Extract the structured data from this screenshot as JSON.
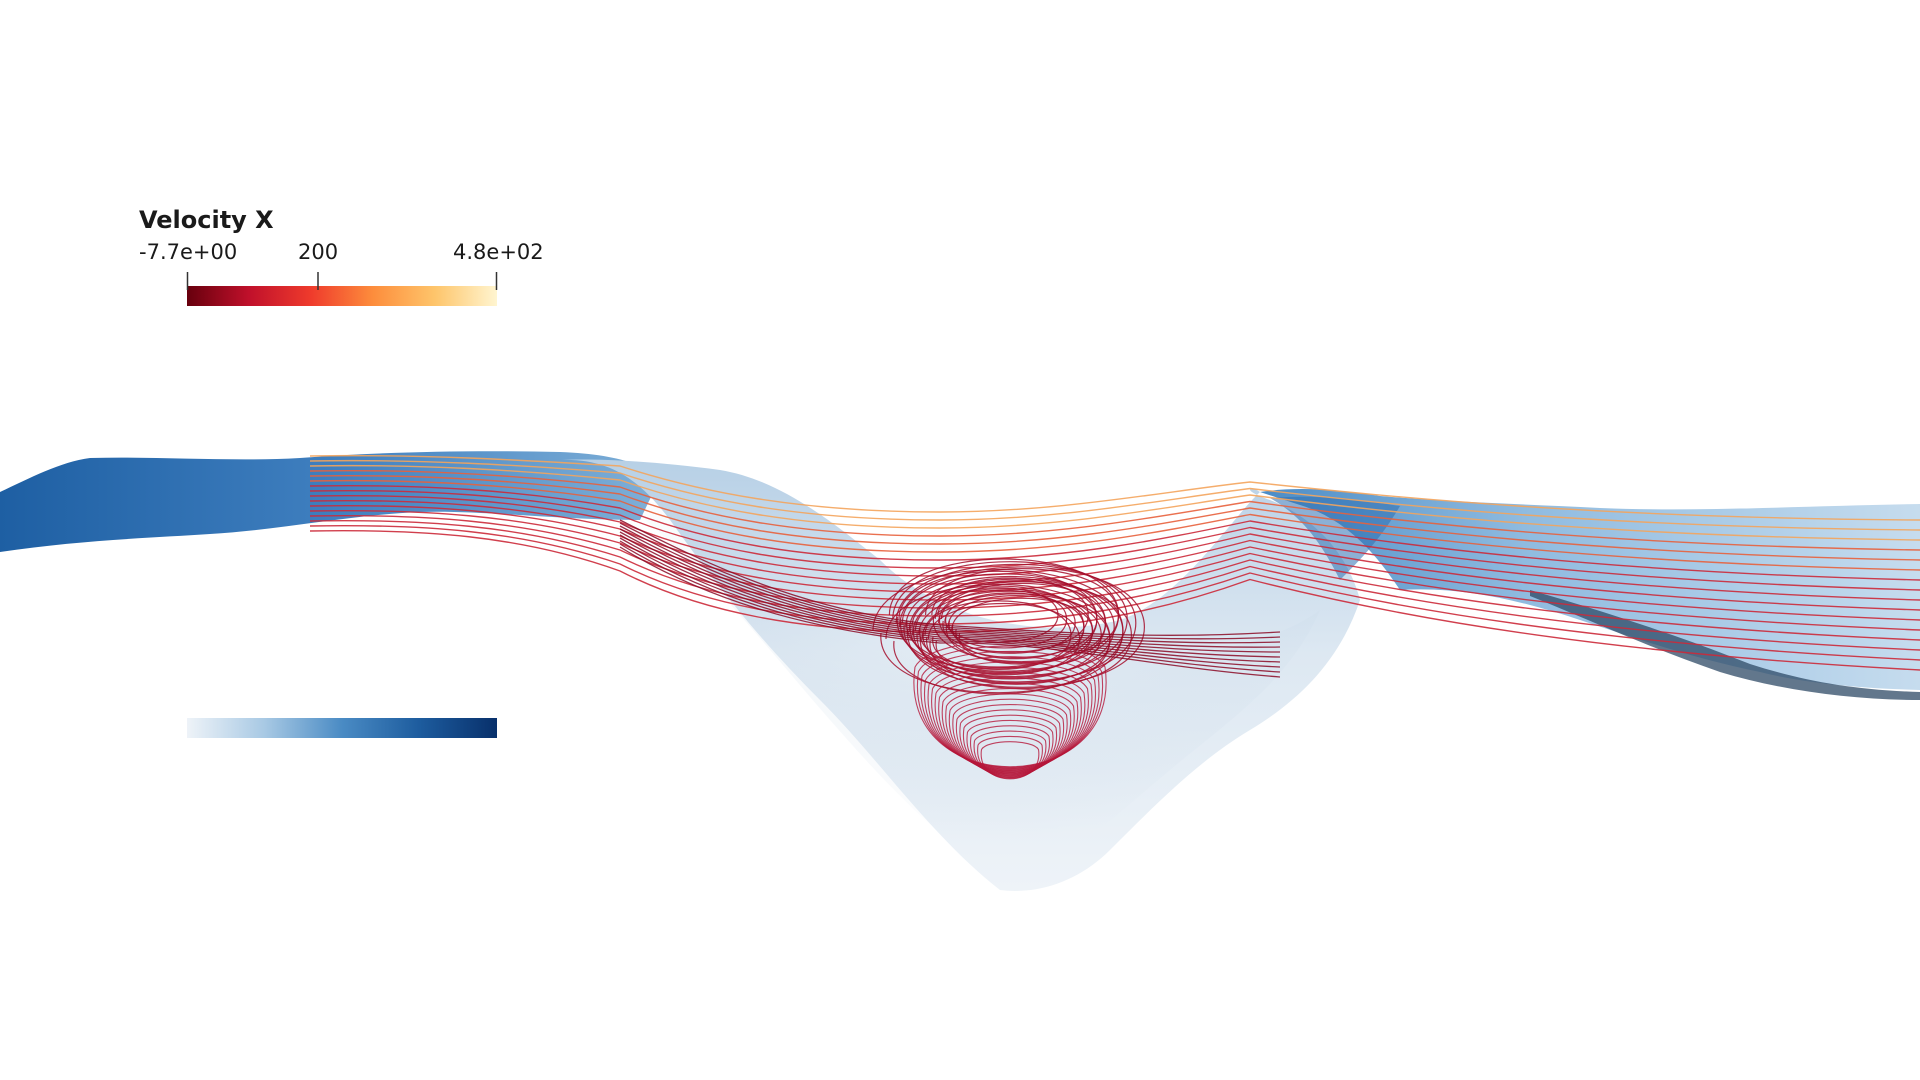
{
  "legend": {
    "title": "Velocity X",
    "tick_min": "-7.7e+00",
    "tick_mid": "200",
    "tick_max": "4.8e+02"
  },
  "colormaps": {
    "streamline": [
      "#67000d",
      "#c0102b",
      "#ef3b2c",
      "#fd8d3c",
      "#fec56b",
      "#fff5d0"
    ],
    "surface": [
      "#eef3f8",
      "#a8c9e4",
      "#4a8bc4",
      "#1d5c9e",
      "#08306b"
    ]
  }
}
